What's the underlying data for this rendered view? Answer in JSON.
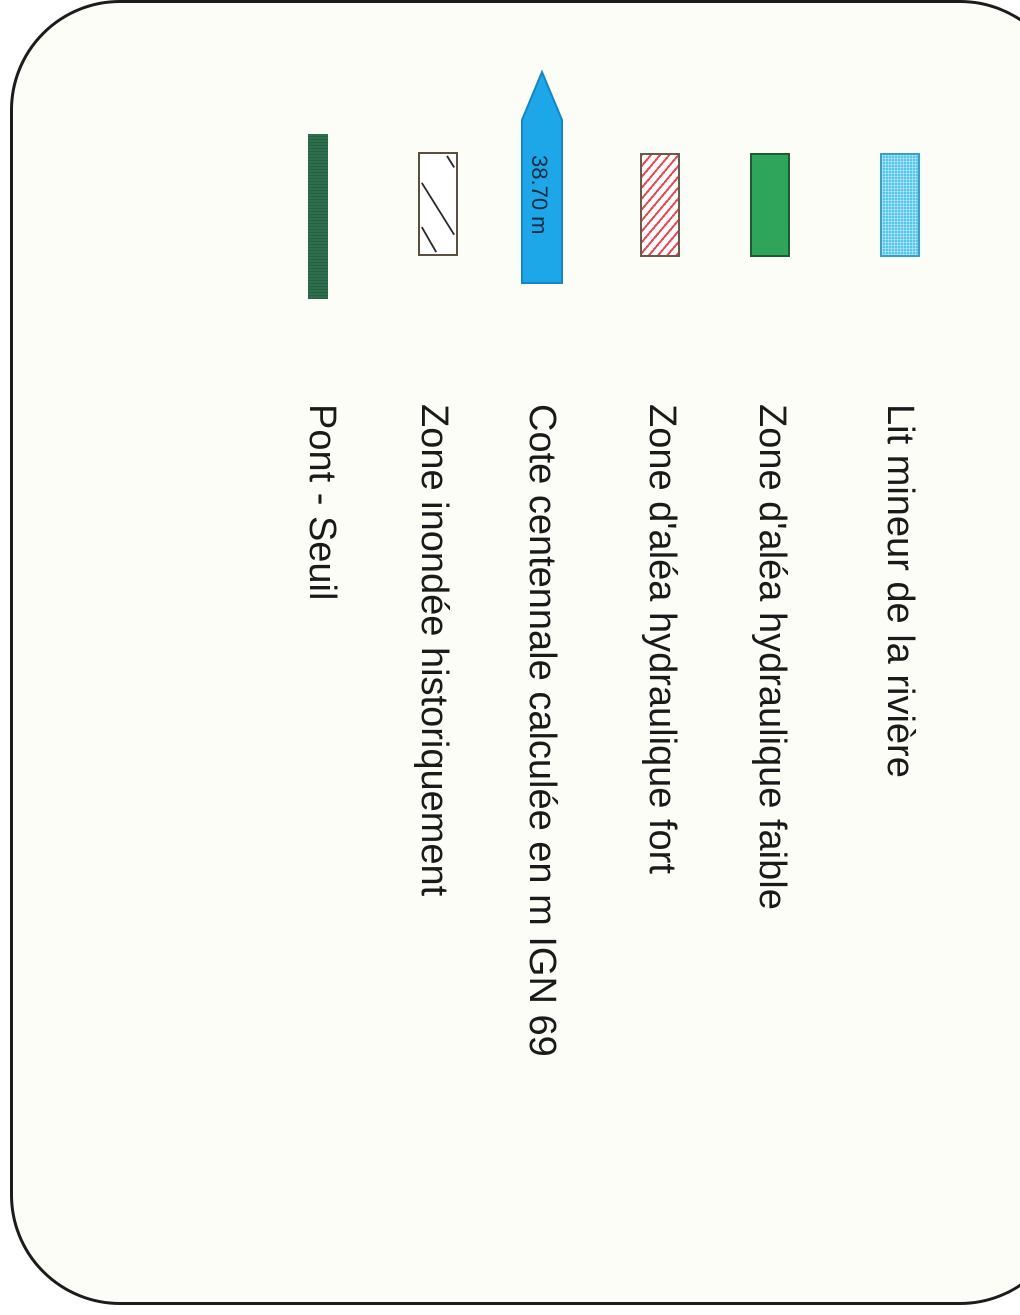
{
  "legend": {
    "items": [
      {
        "id": "lit-mineur",
        "label": "Lit mineur de la rivière",
        "color": "#56c6ec"
      },
      {
        "id": "alea-faible",
        "label": "Zone d'aléa hydraulique faible",
        "color": "#2fa55c"
      },
      {
        "id": "alea-fort",
        "label": "Zone d'aléa hydraulique fort",
        "color": "#e8474f"
      },
      {
        "id": "cote-centennale",
        "label": "Cote centennale calculée en m IGN 69",
        "color": "#1ea7e8",
        "marker_text": "38.70 m"
      },
      {
        "id": "zone-historique",
        "label": "Zone inondée historiquement",
        "color": "#ffffff"
      },
      {
        "id": "pont-seuil",
        "label": "Pont - Seuil",
        "color": "#2f6e4c"
      }
    ]
  }
}
